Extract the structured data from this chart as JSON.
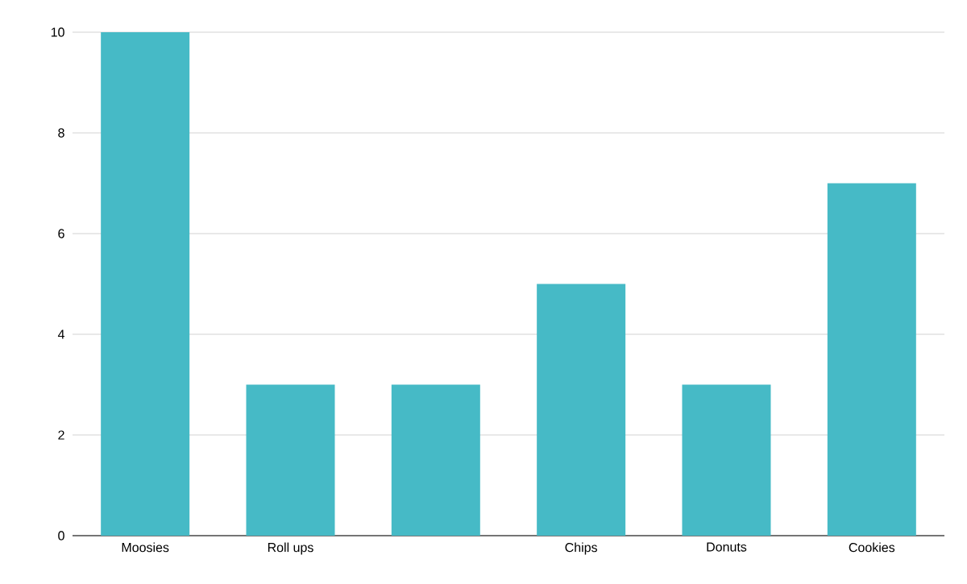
{
  "chart_data": {
    "type": "bar",
    "categories": [
      "Moosies",
      "Roll ups",
      null,
      "Chips",
      "Donuts",
      "Cookies"
    ],
    "values": [
      10,
      3,
      3,
      5,
      3,
      7
    ],
    "color": "#46bac6",
    "ylim": [
      0,
      10
    ],
    "yticks": [
      0,
      2,
      4,
      6,
      8,
      10
    ],
    "grid": "y"
  }
}
